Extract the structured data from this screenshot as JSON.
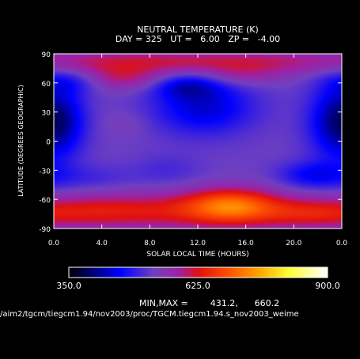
{
  "title_line1": "NEUTRAL TEMPERATURE (K)",
  "title_line2": "DAY = 325   UT =   6.00   ZP =   -4.00",
  "minmax_text": "MIN,MAX =        431.2,      660.2",
  "filepath": "/aim2/tgcm/tiegcm1.94/nov2003/proc/TGCM.tiegcm1.94.s_nov2003_weime",
  "colors": {
    "background": "#000000",
    "text": "#ffffff"
  },
  "chart_data": {
    "type": "heatmap",
    "xlabel": "SOLAR LOCAL TIME (HOURS)",
    "ylabel": "LATITUDE (DEGREES GEOGRAPHIC)",
    "xlim": [
      0,
      24
    ],
    "ylim": [
      -90,
      90
    ],
    "x_ticks": [
      "0.0",
      "4.0",
      "8.0",
      "12.0",
      "16.0",
      "20.0",
      "0.0"
    ],
    "y_ticks": [
      "90",
      "60",
      "30",
      "0",
      "-30",
      "-60",
      "-90"
    ],
    "field_min": 431.2,
    "field_max": 660.2,
    "field_features": [
      {
        "lt": 14.8,
        "lat": -66,
        "value": 660,
        "sx": 2.6,
        "sy": 12
      },
      {
        "lt": 12.0,
        "lat": -72,
        "value": 615,
        "sx": 7.0,
        "sy": 14
      },
      {
        "lt": 3.0,
        "lat": -72,
        "value": 590,
        "sx": 4.0,
        "sy": 12
      },
      {
        "lt": 21.5,
        "lat": -75,
        "value": 590,
        "sx": 3.0,
        "sy": 10
      },
      {
        "lt": 11.0,
        "lat": 82,
        "value": 610,
        "sx": 14.0,
        "sy": 9
      },
      {
        "lt": 5.5,
        "lat": 65,
        "value": 600,
        "sx": 3.0,
        "sy": 9
      },
      {
        "lt": 15.5,
        "lat": 68,
        "value": 575,
        "sx": 2.5,
        "sy": 8
      },
      {
        "lt": 6.0,
        "lat": 18,
        "value": 545,
        "sx": 1.3,
        "sy": 9
      },
      {
        "lt": 12.5,
        "lat": 35,
        "value": 440,
        "sx": 3.0,
        "sy": 20
      },
      {
        "lt": 11.0,
        "lat": 57,
        "value": 455,
        "sx": 2.0,
        "sy": 9
      },
      {
        "lt": 23.5,
        "lat": 20,
        "value": 450,
        "sx": 1.8,
        "sy": 28
      },
      {
        "lt": 0.5,
        "lat": 20,
        "value": 460,
        "sx": 1.5,
        "sy": 25
      },
      {
        "lt": 21.5,
        "lat": -35,
        "value": 465,
        "sx": 2.0,
        "sy": 10
      },
      {
        "lt": 1.5,
        "lat": 62,
        "value": 470,
        "sx": 2.0,
        "sy": 9
      },
      {
        "lt": 2.5,
        "lat": -38,
        "value": 500,
        "sx": 3.0,
        "sy": 10
      },
      {
        "lt": 9.5,
        "lat": -30,
        "value": 505,
        "sx": 2.0,
        "sy": 12
      }
    ],
    "colorbar": {
      "min": 350.0,
      "mid": 625.0,
      "max": 900.0,
      "labels": [
        "350.0",
        "625.0",
        "900.0"
      ],
      "colors": [
        "#000000",
        "#0000ff",
        "#7040c0",
        "#a020a0",
        "#e01010",
        "#ff5000",
        "#ffb000",
        "#ffff30",
        "#ffffff"
      ],
      "positions": [
        0,
        0.2,
        0.33,
        0.43,
        0.5,
        0.62,
        0.75,
        0.85,
        1.0
      ]
    }
  }
}
